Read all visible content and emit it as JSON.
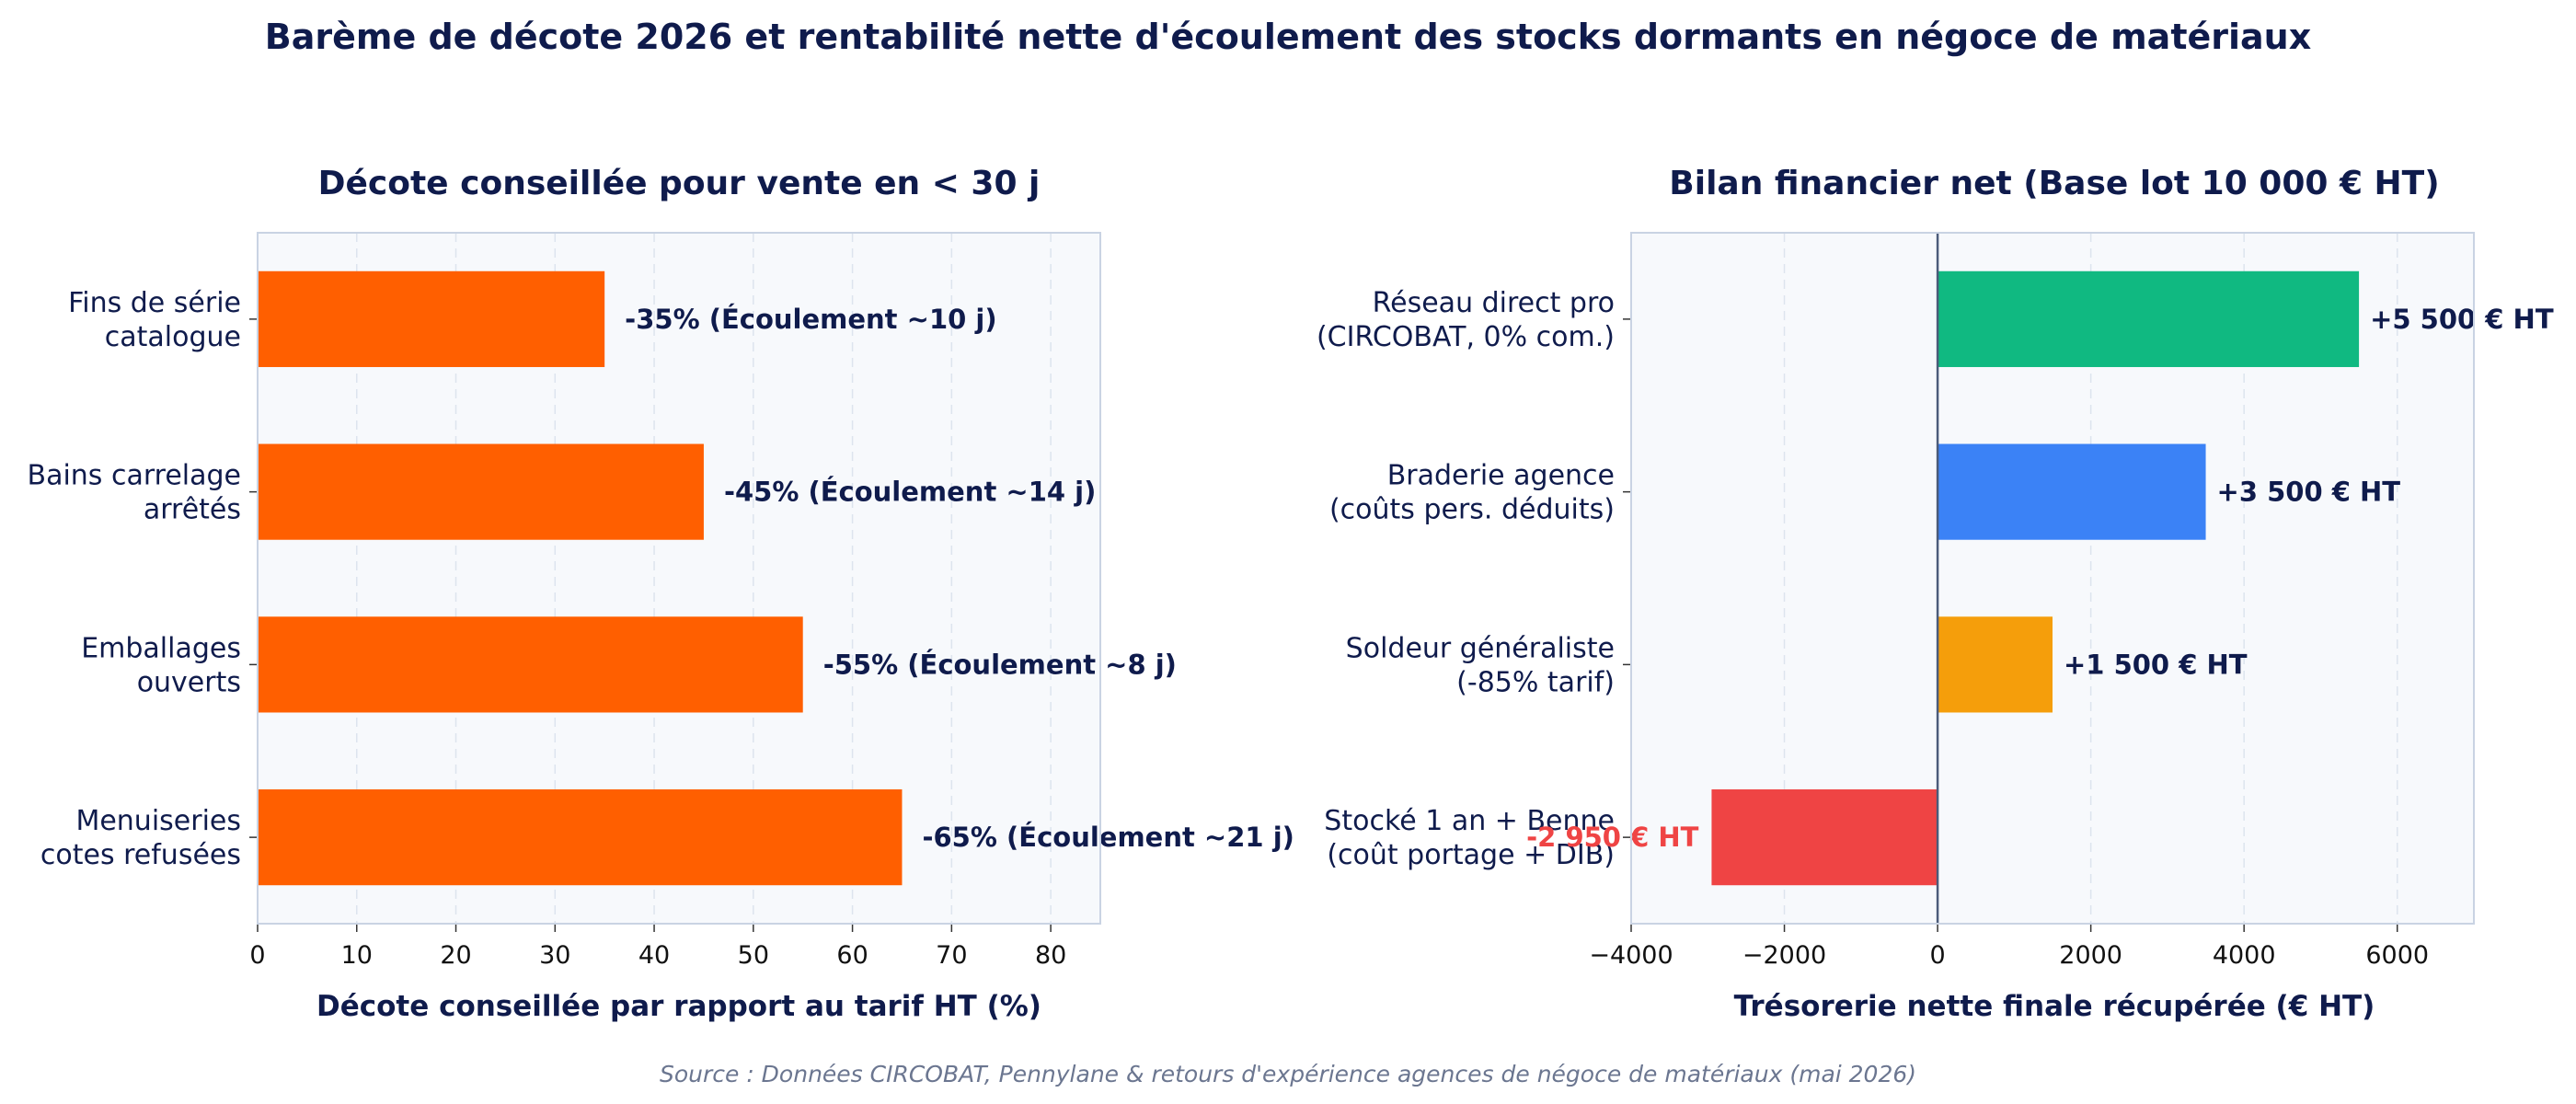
{
  "figure": {
    "title": "Barème de décote 2026 et rentabilité nette d'écoulement des stocks dormants en négoce de matériaux",
    "source": "Source : Données CIRCOBAT, Pennylane & retours d'expérience agences de négoce de matériaux (mai 2026)"
  },
  "chart_data": [
    {
      "type": "bar",
      "orientation": "horizontal",
      "title": "Décote conseillée pour vente en < 30 j",
      "xlabel": "Décote conseillée par rapport au tarif HT (%)",
      "ylabel": "",
      "categories": [
        [
          "Fins de série",
          "catalogue"
        ],
        [
          "Bains carrelage",
          "arrêtés"
        ],
        [
          "Emballages",
          "ouverts"
        ],
        [
          "Menuiseries",
          "cotes refusées"
        ]
      ],
      "values": [
        35,
        45,
        55,
        65
      ],
      "data_labels": [
        "-35% (Écoulement ~10 j)",
        "-45% (Écoulement ~14 j)",
        "-55% (Écoulement ~8 j)",
        "-65% (Écoulement ~21 j)"
      ],
      "colors": [
        "#ff5f00",
        "#ff5f00",
        "#ff5f00",
        "#ff5f00"
      ],
      "xlim": [
        0,
        85
      ],
      "xticks": [
        0,
        10,
        20,
        30,
        40,
        50,
        60,
        70,
        80
      ],
      "xtick_labels": [
        "0",
        "10",
        "20",
        "30",
        "40",
        "50",
        "60",
        "70",
        "80"
      ],
      "grid": "vertical dashed",
      "legend": "none"
    },
    {
      "type": "bar",
      "orientation": "horizontal",
      "title": "Bilan financier net (Base lot 10 000 € HT)",
      "xlabel": "Trésorerie nette finale récupérée (€ HT)",
      "ylabel": "",
      "categories": [
        [
          "Réseau direct pro",
          "(CIRCOBAT, 0% com.)"
        ],
        [
          "Braderie agence",
          "(coûts pers. déduits)"
        ],
        [
          "Soldeur généraliste",
          "(-85% tarif)"
        ],
        [
          "Stocké 1 an + Benne",
          "(coût portage + DIB)"
        ]
      ],
      "values": [
        5500,
        3500,
        1500,
        -2950
      ],
      "data_labels": [
        "+5 500 € HT",
        "+3 500 € HT",
        "+1 500 € HT",
        "-2 950 € HT"
      ],
      "colors": [
        "#10b981",
        "#3b82f6",
        "#f59e0b",
        "#ef4444"
      ],
      "xlim": [
        -4000,
        7000
      ],
      "xticks": [
        -4000,
        -2000,
        0,
        2000,
        4000,
        6000
      ],
      "xtick_labels": [
        "−4000",
        "−2000",
        "0",
        "2000",
        "4000",
        "6000"
      ],
      "grid": "vertical dashed",
      "legend": "none",
      "colors_theme": {
        "zero_line": "#4b5b7a",
        "negative_label": "#ef4444"
      }
    }
  ],
  "theme": {
    "plot_bg": "#f7f9fc",
    "frame": "#c9d3e3",
    "grid": "#dde4ee",
    "text": "#0f1b4c"
  }
}
